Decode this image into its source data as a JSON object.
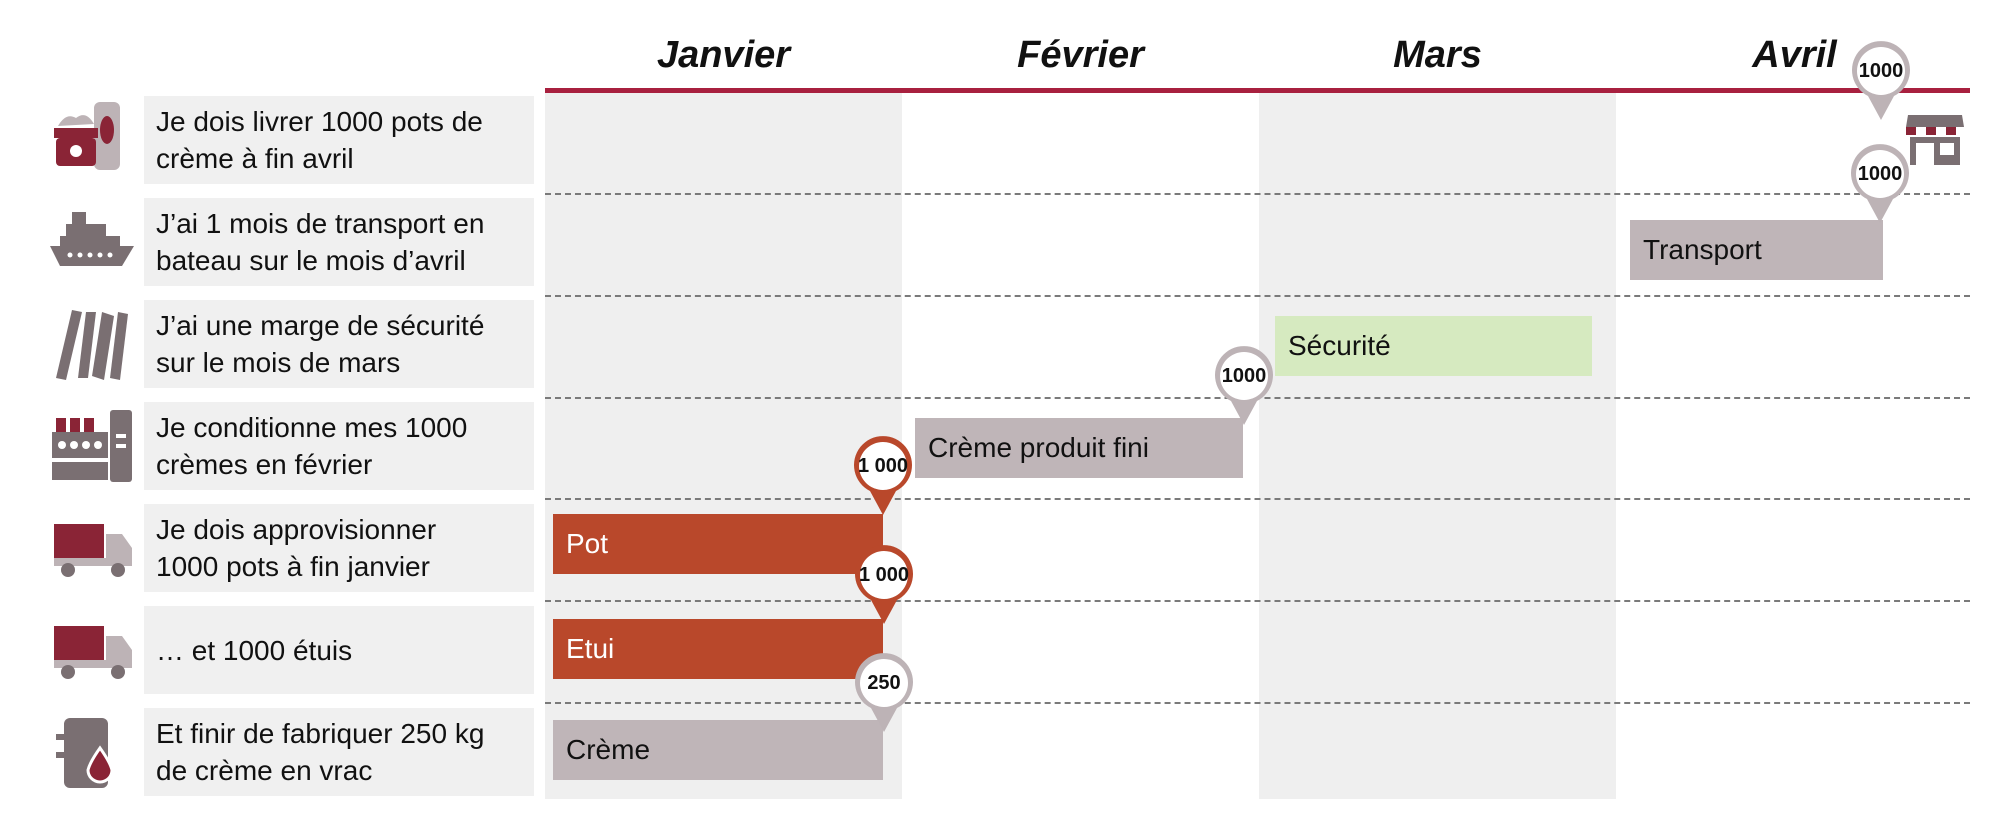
{
  "months": [
    "Janvier",
    "Février",
    "Mars",
    "Avril"
  ],
  "rows": [
    {
      "label": [
        "Je dois livrer 1000 pots de",
        "crème à fin avril"
      ],
      "icon": "cream-jar-icon"
    },
    {
      "label": [
        "J’ai 1 mois de transport en",
        "bateau sur le mois d’avril"
      ],
      "icon": "ship-icon"
    },
    {
      "label": [
        "J’ai une marge de sécurité",
        "sur le mois de mars"
      ],
      "icon": "binders-icon"
    },
    {
      "label": [
        "Je conditionne mes 1000",
        "crèmes en février"
      ],
      "icon": "packaging-machine-icon"
    },
    {
      "label": [
        "Je dois approvisionner",
        "1000 pots à fin janvier"
      ],
      "icon": "truck-icon"
    },
    {
      "label": [
        "… et 1000 étuis"
      ],
      "icon": "truck-icon"
    },
    {
      "label": [
        "Et finir de fabriquer 250 kg",
        "de crème en vrac"
      ],
      "icon": "bulk-barrel-icon"
    }
  ],
  "bars": [
    {
      "label": "Transport",
      "month": "Avril",
      "row": 1,
      "style": "grey"
    },
    {
      "label": "Sécurité",
      "month": "Mars",
      "row": 2,
      "style": "green"
    },
    {
      "label": "Crème produit fini",
      "month": "Février",
      "row": 3,
      "style": "grey"
    },
    {
      "label": "Pot",
      "month": "Janvier",
      "row": 4,
      "style": "red"
    },
    {
      "label": "Etui",
      "month": "Janvier",
      "row": 5,
      "style": "red"
    },
    {
      "label": "Crème",
      "month": "Janvier",
      "row": 6,
      "style": "grey"
    }
  ],
  "markers": [
    {
      "value": "1000",
      "row": 0,
      "style": "grey"
    },
    {
      "value": "1000",
      "row": 1,
      "style": "grey"
    },
    {
      "value": "1000",
      "row": 3,
      "style": "grey"
    },
    {
      "value": "1 000",
      "row": 4,
      "style": "red"
    },
    {
      "value": "1 000",
      "row": 5,
      "style": "red"
    },
    {
      "value": "250",
      "row": 6,
      "style": "grey"
    }
  ],
  "delivery_icon": "shop-icon",
  "colors": {
    "accent": "#a8203f",
    "red_bar": "#b9482b",
    "grey_bar": "#bfb5b8",
    "green_bar": "#d6eac0",
    "icon": "#7a6f72"
  }
}
